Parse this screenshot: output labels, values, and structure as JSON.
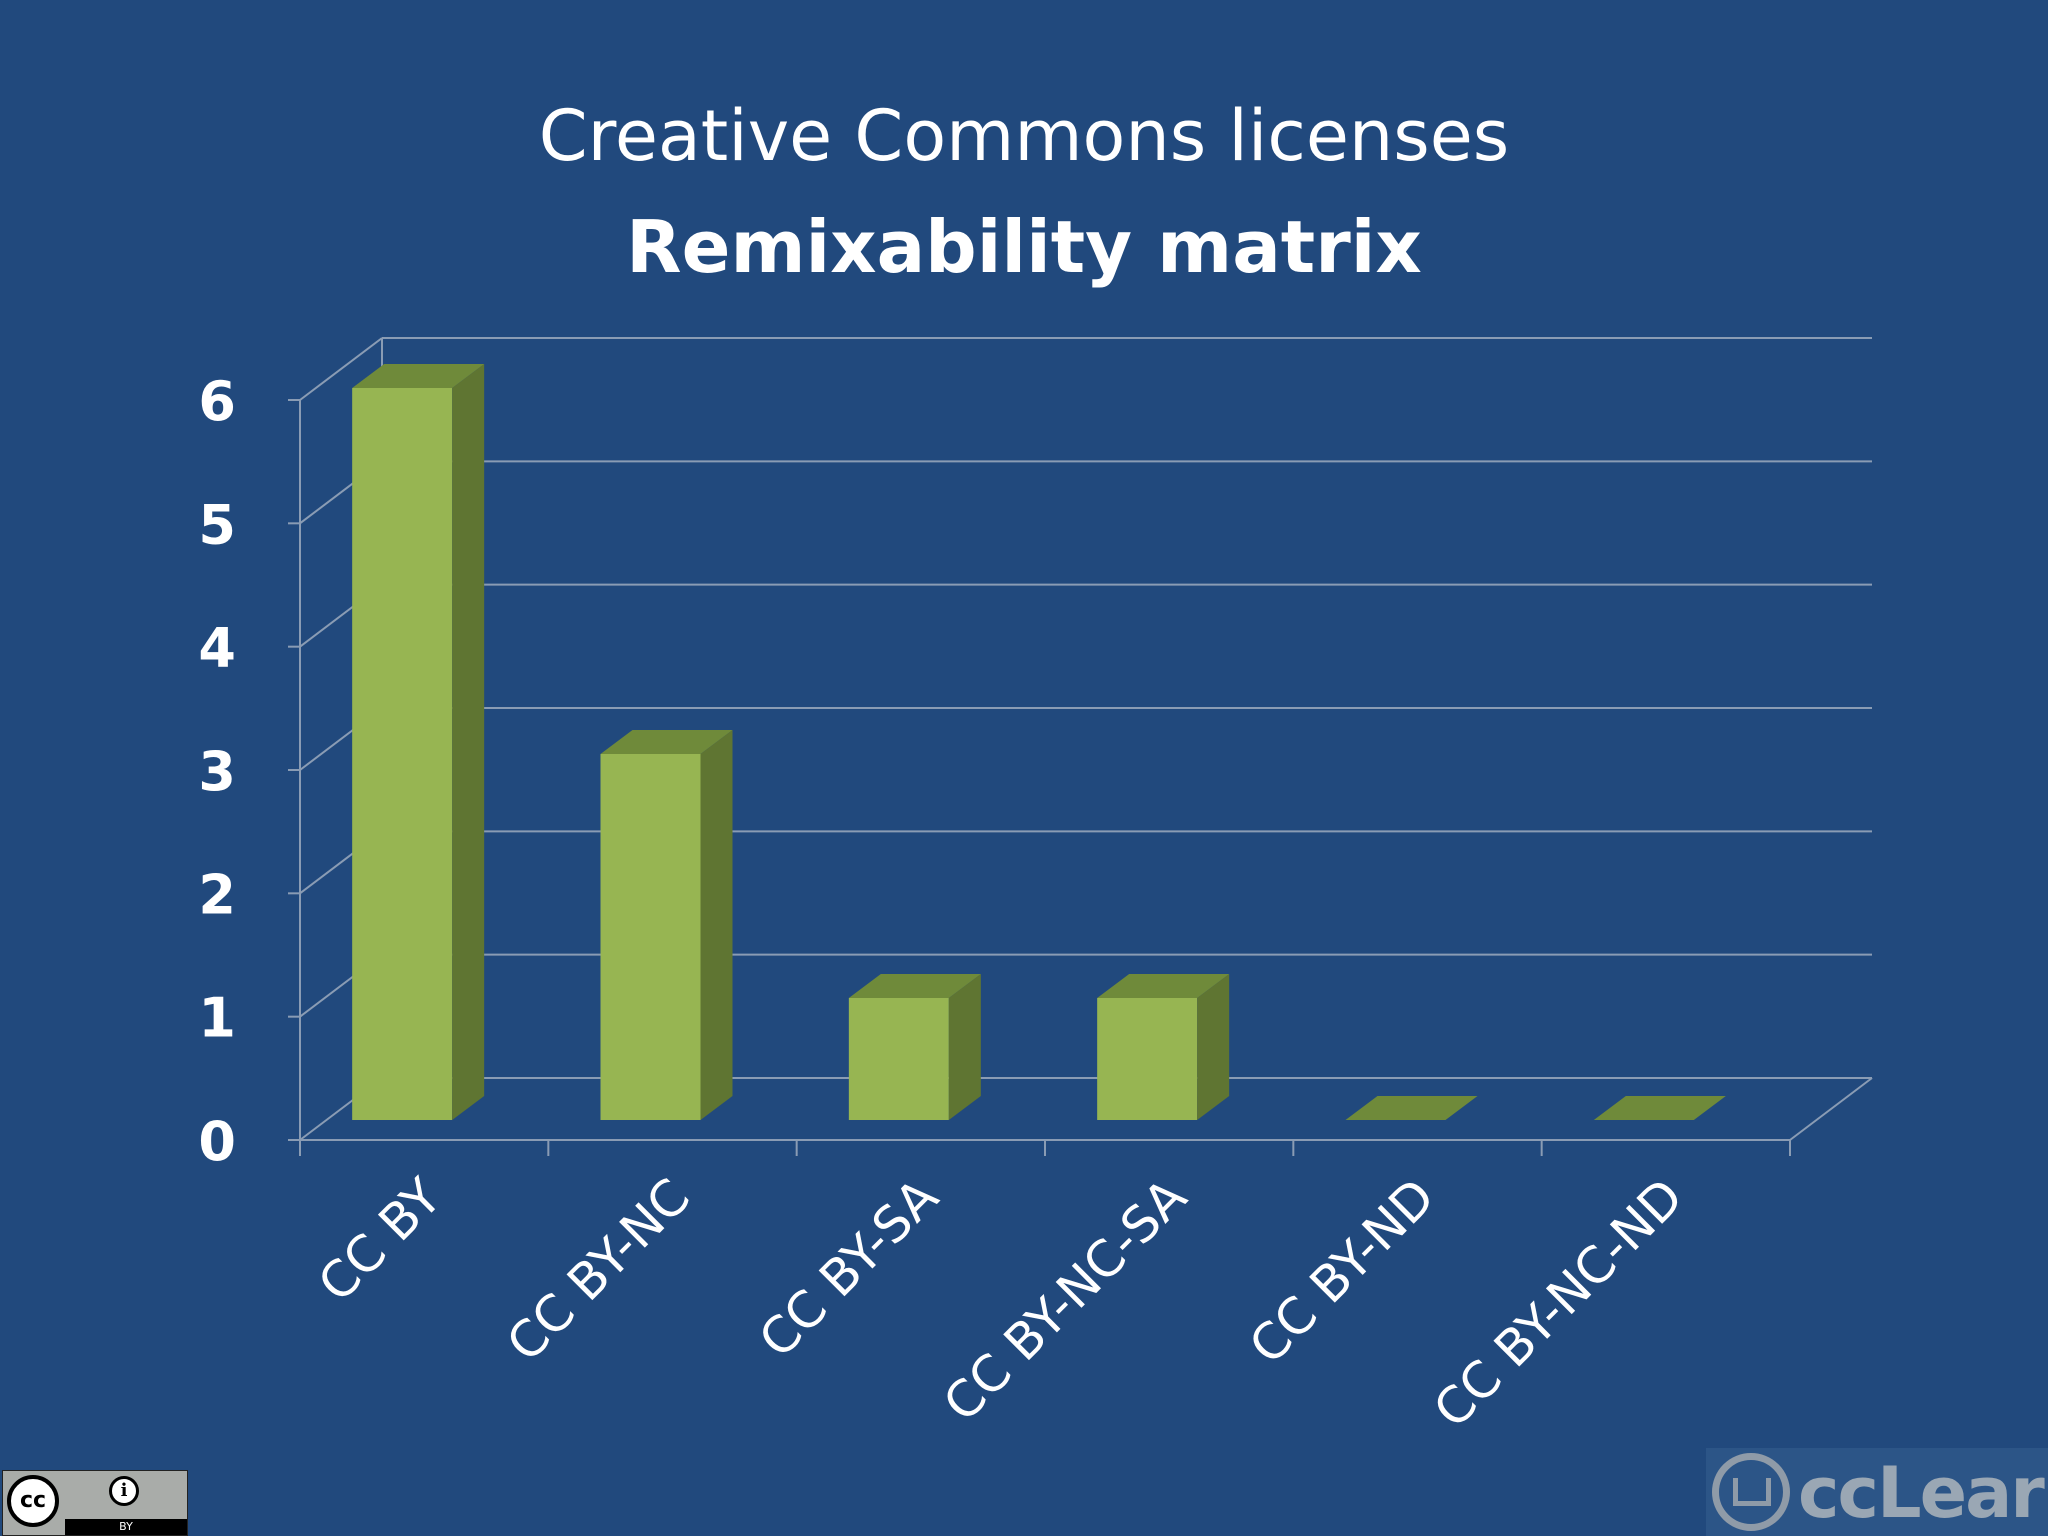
{
  "header": {
    "title": "Creative Commons licenses",
    "subtitle": "Remixability matrix"
  },
  "chart_data": {
    "type": "bar",
    "title": "Creative Commons licenses",
    "subtitle": "Remixability matrix",
    "categories": [
      "CC BY",
      "CC BY-NC",
      "CC BY-SA",
      "CC BY-NC-SA",
      "CC BY-ND",
      "CC BY-NC-ND"
    ],
    "values": [
      6,
      3,
      1,
      1,
      0,
      0
    ],
    "ylim": [
      0,
      6
    ],
    "yticks": [
      "0",
      "1",
      "2",
      "3",
      "4",
      "5",
      "6"
    ],
    "xlabel": "",
    "ylabel": "",
    "grid": true,
    "style": "3d-column",
    "colors": {
      "bar_front": "#97b552",
      "bar_side": "#5f7532",
      "bar_top": "#6f8a3a",
      "grid": "#8a9cb4",
      "text": "#ffffff"
    }
  },
  "footer": {
    "license_badge": {
      "icon": "cc-by-icon",
      "label": "BY"
    },
    "brand_logo": {
      "icon": "cclearn-logo-icon",
      "text": "ccLearn"
    }
  }
}
